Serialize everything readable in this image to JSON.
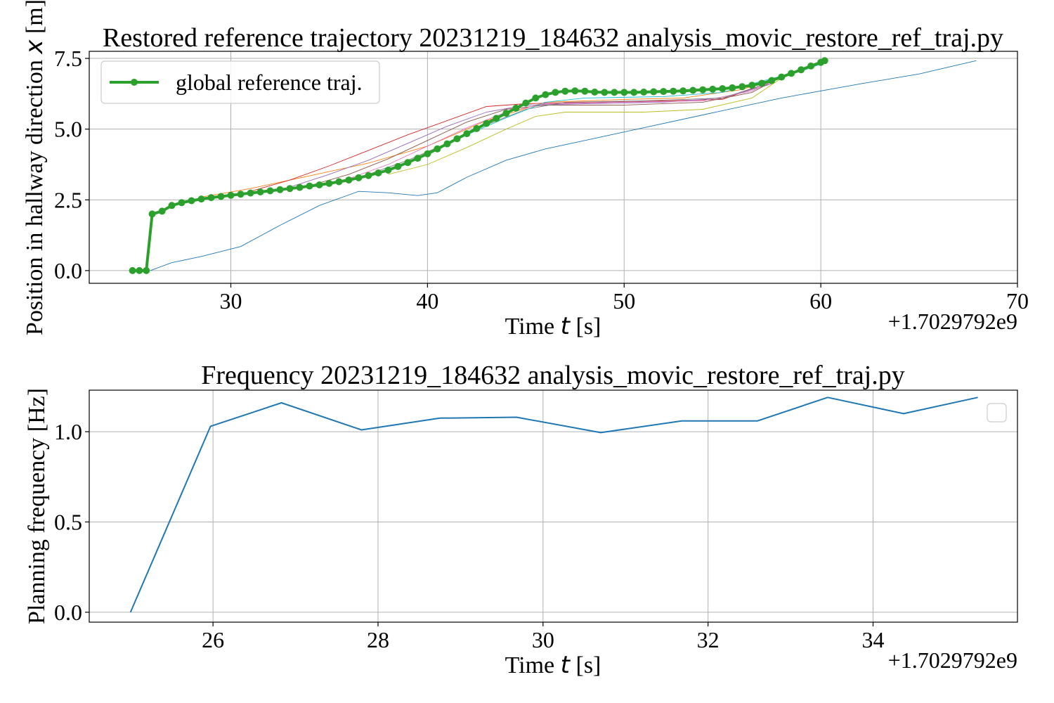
{
  "chart_data": [
    {
      "type": "line",
      "title": "Restored reference trajectory 20231219_184632 analysis_movic_restore_ref_traj.py",
      "xlabel": "Time t [s]",
      "ylabel": "Position in hallway direction x [m]",
      "x_offset_text": "+1.7029792e9",
      "xlim": [
        22.8,
        70
      ],
      "ylim": [
        -0.45,
        7.75
      ],
      "xticks": [
        30,
        40,
        50,
        60,
        70
      ],
      "yticks": [
        0.0,
        2.5,
        5.0,
        7.5
      ],
      "ytick_labels": [
        "0.0",
        "2.5",
        "5.0",
        "7.5"
      ],
      "grid": true,
      "legend": {
        "placement": "upper-left",
        "entries": [
          "global reference traj."
        ]
      },
      "global_series": {
        "name": "global reference traj.",
        "color": "#2ca02c",
        "marker": "circle",
        "points": [
          [
            25.0,
            0.0
          ],
          [
            25.35,
            0.0
          ],
          [
            25.7,
            0.0
          ],
          [
            26.0,
            2.0
          ],
          [
            26.5,
            2.1
          ],
          [
            27.0,
            2.3
          ],
          [
            27.5,
            2.4
          ],
          [
            28.0,
            2.47
          ],
          [
            28.5,
            2.53
          ],
          [
            29.0,
            2.58
          ],
          [
            29.5,
            2.62
          ],
          [
            30.0,
            2.66
          ],
          [
            30.5,
            2.7
          ],
          [
            31.0,
            2.74
          ],
          [
            31.5,
            2.78
          ],
          [
            32.0,
            2.82
          ],
          [
            32.5,
            2.86
          ],
          [
            33.0,
            2.9
          ],
          [
            33.5,
            2.94
          ],
          [
            34.0,
            2.99
          ],
          [
            34.5,
            3.03
          ],
          [
            35.0,
            3.08
          ],
          [
            35.5,
            3.14
          ],
          [
            36.0,
            3.2
          ],
          [
            36.5,
            3.28
          ],
          [
            37.0,
            3.36
          ],
          [
            37.5,
            3.45
          ],
          [
            38.0,
            3.55
          ],
          [
            38.5,
            3.68
          ],
          [
            39.0,
            3.82
          ],
          [
            39.5,
            3.97
          ],
          [
            40.0,
            4.13
          ],
          [
            40.5,
            4.3
          ],
          [
            41.0,
            4.48
          ],
          [
            41.5,
            4.66
          ],
          [
            42.0,
            4.84
          ],
          [
            42.5,
            5.02
          ],
          [
            43.0,
            5.2
          ],
          [
            43.5,
            5.38
          ],
          [
            44.0,
            5.56
          ],
          [
            44.5,
            5.74
          ],
          [
            45.0,
            5.92
          ],
          [
            45.5,
            6.1
          ],
          [
            46.0,
            6.22
          ],
          [
            46.5,
            6.3
          ],
          [
            47.0,
            6.34
          ],
          [
            47.5,
            6.35
          ],
          [
            48.0,
            6.34
          ],
          [
            48.5,
            6.31
          ],
          [
            49.0,
            6.3
          ],
          [
            49.5,
            6.3
          ],
          [
            50.0,
            6.3
          ],
          [
            50.5,
            6.3
          ],
          [
            51.0,
            6.31
          ],
          [
            51.5,
            6.32
          ],
          [
            52.0,
            6.33
          ],
          [
            52.5,
            6.34
          ],
          [
            53.0,
            6.35
          ],
          [
            53.5,
            6.37
          ],
          [
            54.0,
            6.39
          ],
          [
            54.5,
            6.41
          ],
          [
            55.0,
            6.43
          ],
          [
            55.5,
            6.46
          ],
          [
            56.0,
            6.5
          ],
          [
            56.5,
            6.55
          ],
          [
            57.0,
            6.62
          ],
          [
            57.5,
            6.72
          ],
          [
            58.0,
            6.84
          ],
          [
            58.5,
            6.97
          ],
          [
            59.0,
            7.1
          ],
          [
            59.5,
            7.23
          ],
          [
            60.0,
            7.36
          ],
          [
            60.2,
            7.42
          ]
        ]
      },
      "local_series": [
        {
          "color": "#1f77b4",
          "points": [
            [
              25.9,
              0.0
            ],
            [
              27.0,
              0.28
            ],
            [
              28.5,
              0.5
            ],
            [
              30.5,
              0.85
            ],
            [
              32.5,
              1.6
            ],
            [
              34.5,
              2.3
            ],
            [
              36.5,
              2.8
            ],
            [
              38.0,
              2.75
            ],
            [
              39.5,
              2.65
            ],
            [
              40.5,
              2.75
            ],
            [
              42.0,
              3.3
            ],
            [
              44.0,
              3.9
            ],
            [
              46.0,
              4.3
            ],
            [
              48.0,
              4.6
            ],
            [
              50.0,
              4.9
            ],
            [
              54.0,
              5.5
            ],
            [
              58.0,
              6.1
            ],
            [
              62.0,
              6.6
            ],
            [
              65.0,
              6.95
            ],
            [
              67.9,
              7.42
            ]
          ]
        },
        {
          "color": "#ff7f0e",
          "points": [
            [
              28.5,
              2.6
            ],
            [
              31.0,
              2.9
            ],
            [
              34.0,
              3.35
            ],
            [
              37.0,
              3.8
            ],
            [
              40.0,
              4.4
            ],
            [
              43.0,
              5.3
            ],
            [
              46.0,
              5.95
            ],
            [
              50.0,
              6.05
            ],
            [
              53.0,
              6.1
            ],
            [
              56.0,
              6.4
            ],
            [
              57.5,
              6.75
            ]
          ]
        },
        {
          "color": "#d62728",
          "points": [
            [
              31.0,
              2.8
            ],
            [
              33.0,
              3.2
            ],
            [
              35.0,
              3.7
            ],
            [
              37.0,
              4.25
            ],
            [
              39.0,
              4.8
            ],
            [
              41.0,
              5.3
            ],
            [
              43.0,
              5.8
            ],
            [
              45.0,
              5.9
            ],
            [
              48.0,
              5.95
            ],
            [
              52.0,
              6.0
            ],
            [
              55.0,
              6.05
            ],
            [
              57.0,
              6.55
            ]
          ]
        },
        {
          "color": "#9467bd",
          "points": [
            [
              33.0,
              2.95
            ],
            [
              35.0,
              3.4
            ],
            [
              37.0,
              3.9
            ],
            [
              39.0,
              4.5
            ],
            [
              41.0,
              5.1
            ],
            [
              43.0,
              5.6
            ],
            [
              45.0,
              5.85
            ],
            [
              48.0,
              5.9
            ],
            [
              52.0,
              5.95
            ],
            [
              55.0,
              6.1
            ],
            [
              57.5,
              6.6
            ]
          ]
        },
        {
          "color": "#8c564b",
          "points": [
            [
              34.0,
              3.0
            ],
            [
              36.0,
              3.4
            ],
            [
              38.0,
              3.95
            ],
            [
              40.0,
              4.6
            ],
            [
              42.0,
              5.25
            ],
            [
              44.0,
              5.7
            ],
            [
              46.0,
              5.85
            ],
            [
              50.0,
              5.85
            ],
            [
              54.0,
              5.95
            ],
            [
              56.5,
              6.3
            ],
            [
              58.0,
              6.85
            ]
          ]
        },
        {
          "color": "#e377c2",
          "points": [
            [
              36.0,
              3.25
            ],
            [
              38.0,
              3.75
            ],
            [
              40.0,
              4.4
            ],
            [
              42.0,
              5.05
            ],
            [
              44.0,
              5.6
            ],
            [
              46.0,
              5.9
            ],
            [
              50.0,
              5.95
            ],
            [
              54.0,
              6.0
            ],
            [
              56.5,
              6.35
            ],
            [
              58.5,
              7.0
            ]
          ]
        },
        {
          "color": "#7f7f7f",
          "points": [
            [
              37.0,
              3.4
            ],
            [
              39.0,
              3.9
            ],
            [
              41.0,
              4.5
            ],
            [
              43.0,
              5.15
            ],
            [
              45.0,
              5.7
            ],
            [
              47.0,
              5.95
            ],
            [
              51.0,
              6.0
            ],
            [
              55.0,
              6.1
            ],
            [
              57.0,
              6.55
            ],
            [
              59.0,
              7.1
            ]
          ]
        },
        {
          "color": "#bcbd22",
          "points": [
            [
              38.0,
              3.4
            ],
            [
              40.0,
              3.75
            ],
            [
              42.0,
              4.35
            ],
            [
              44.0,
              5.0
            ],
            [
              45.5,
              5.45
            ],
            [
              47.0,
              5.6
            ],
            [
              51.0,
              5.6
            ],
            [
              54.0,
              5.7
            ],
            [
              56.5,
              6.1
            ],
            [
              58.0,
              6.8
            ],
            [
              59.5,
              7.2
            ]
          ]
        },
        {
          "color": "#17becf",
          "points": [
            [
              40.0,
              4.15
            ],
            [
              42.0,
              4.8
            ],
            [
              44.0,
              5.4
            ],
            [
              46.0,
              5.95
            ],
            [
              48.0,
              6.1
            ],
            [
              52.0,
              6.15
            ],
            [
              55.0,
              6.3
            ],
            [
              57.0,
              6.7
            ],
            [
              59.0,
              7.05
            ],
            [
              60.0,
              7.3
            ]
          ]
        }
      ]
    },
    {
      "type": "line",
      "title": "Frequency 20231219_184632 analysis_movic_restore_ref_traj.py",
      "xlabel": "Time t [s]",
      "ylabel": "Planning frequency [Hz]",
      "x_offset_text": "+1.7029792e9",
      "xlim": [
        24.5,
        35.75
      ],
      "ylim": [
        -0.055,
        1.23
      ],
      "xticks": [
        26,
        28,
        30,
        32,
        34
      ],
      "yticks": [
        0.0,
        0.5,
        1.0
      ],
      "ytick_labels": [
        "0.0",
        "0.5",
        "1.0"
      ],
      "grid": true,
      "legend": {
        "placement": "upper-right",
        "entries": []
      },
      "series": [
        {
          "color": "#1f77b4",
          "points": [
            [
              25.0,
              0.0
            ],
            [
              25.97,
              1.03
            ],
            [
              26.83,
              1.16
            ],
            [
              27.8,
              1.01
            ],
            [
              28.75,
              1.075
            ],
            [
              29.68,
              1.08
            ],
            [
              30.7,
              0.995
            ],
            [
              31.68,
              1.06
            ],
            [
              32.6,
              1.06
            ],
            [
              33.45,
              1.19
            ],
            [
              34.37,
              1.1
            ],
            [
              35.27,
              1.19
            ]
          ]
        }
      ]
    }
  ]
}
